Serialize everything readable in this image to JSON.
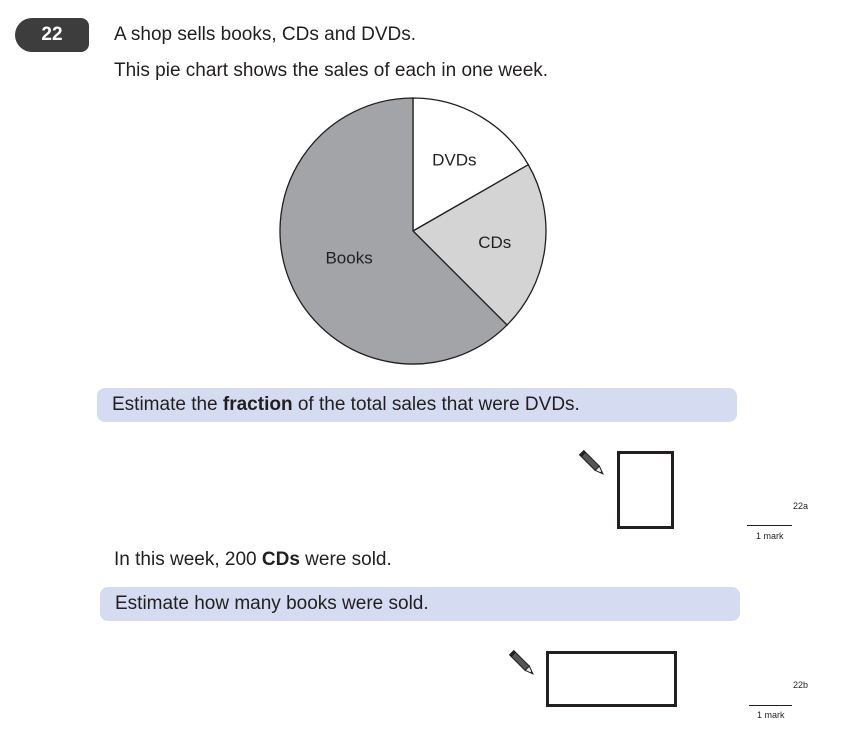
{
  "question": {
    "number": "22",
    "line1": "A shop sells books, CDs and DVDs.",
    "line2": "This pie chart shows the sales of each in one week."
  },
  "chart_data": {
    "type": "pie",
    "categories": [
      "DVDs",
      "CDs",
      "Books"
    ],
    "values": [
      16.7,
      20.8,
      62.5
    ],
    "colors": [
      "#ffffff",
      "#d4d4d4",
      "#a2a4a8"
    ],
    "labels": [
      "DVDs",
      "CDs",
      "Books"
    ]
  },
  "part_a": {
    "prompt_before": "Estimate the ",
    "prompt_bold": "fraction",
    "prompt_after": " of the total sales that were DVDs.",
    "code": "22a",
    "mark": "1 mark"
  },
  "info": {
    "before": "In this week, 200 ",
    "bold": "CDs",
    "after": " were sold."
  },
  "part_b": {
    "prompt": "Estimate how many books were sold.",
    "code": "22b",
    "mark": "1 mark"
  },
  "icons": {
    "pencil": "pencil-icon"
  }
}
